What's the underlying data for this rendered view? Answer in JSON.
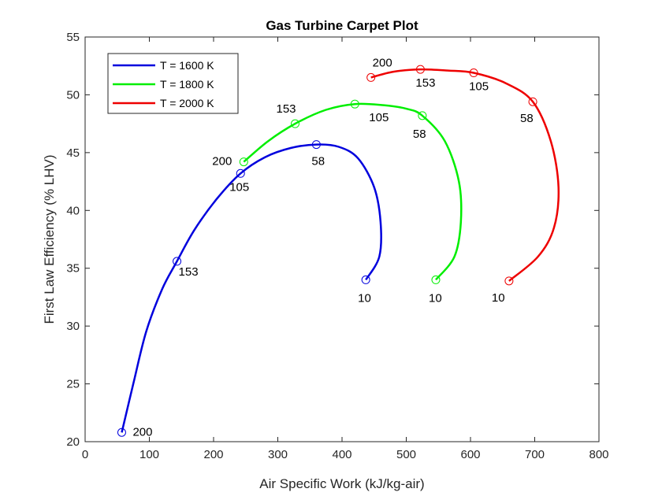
{
  "chart_data": {
    "type": "line",
    "title": "Gas Turbine Carpet Plot",
    "xlabel": "Air Specific Work (kJ/kg-air)",
    "ylabel": "First Law Efficiency (% LHV)",
    "xlim": [
      0,
      800
    ],
    "ylim": [
      20,
      55
    ],
    "xticks": [
      0,
      100,
      200,
      300,
      400,
      500,
      600,
      700,
      800
    ],
    "yticks": [
      20,
      25,
      30,
      35,
      40,
      45,
      50,
      55
    ],
    "grid": false,
    "legend_position": "top-left",
    "series": [
      {
        "name": "T = 1600 K",
        "color": "#0000dd",
        "points": [
          {
            "label": "200",
            "x": 57,
            "y": 20.8
          },
          {
            "label": "153",
            "x": 143,
            "y": 35.6
          },
          {
            "label": "105",
            "x": 242,
            "y": 43.2
          },
          {
            "label": "58",
            "x": 360,
            "y": 45.7
          },
          {
            "label": "10",
            "x": 437,
            "y": 34.0
          }
        ],
        "curve": [
          [
            57,
            20.8
          ],
          [
            75,
            25.0
          ],
          [
            95,
            29.5
          ],
          [
            120,
            33.2
          ],
          [
            143,
            35.6
          ],
          [
            170,
            38.3
          ],
          [
            205,
            41.0
          ],
          [
            242,
            43.2
          ],
          [
            280,
            44.6
          ],
          [
            320,
            45.4
          ],
          [
            360,
            45.7
          ],
          [
            395,
            45.5
          ],
          [
            425,
            44.5
          ],
          [
            450,
            42.0
          ],
          [
            460,
            39.0
          ],
          [
            458,
            36.0
          ],
          [
            437,
            34.0
          ]
        ]
      },
      {
        "name": "T = 1800 K",
        "color": "#00ee00",
        "points": [
          {
            "label": "200",
            "x": 247,
            "y": 44.2
          },
          {
            "label": "153",
            "x": 327,
            "y": 47.5
          },
          {
            "label": "105",
            "x": 420,
            "y": 49.2
          },
          {
            "label": "58",
            "x": 525,
            "y": 48.2
          },
          {
            "label": "10",
            "x": 546,
            "y": 34.0
          }
        ],
        "curve": [
          [
            247,
            44.2
          ],
          [
            285,
            46.0
          ],
          [
            327,
            47.5
          ],
          [
            375,
            48.7
          ],
          [
            420,
            49.2
          ],
          [
            465,
            49.1
          ],
          [
            500,
            48.8
          ],
          [
            525,
            48.2
          ],
          [
            560,
            46.0
          ],
          [
            582,
            42.5
          ],
          [
            585,
            39.0
          ],
          [
            575,
            36.0
          ],
          [
            546,
            34.0
          ]
        ]
      },
      {
        "name": "T = 2000 K",
        "color": "#ee0000",
        "points": [
          {
            "label": "200",
            "x": 445,
            "y": 51.5
          },
          {
            "label": "153",
            "x": 522,
            "y": 52.2
          },
          {
            "label": "105",
            "x": 605,
            "y": 51.9
          },
          {
            "label": "58",
            "x": 697,
            "y": 49.4
          },
          {
            "label": "10",
            "x": 660,
            "y": 33.9
          }
        ],
        "curve": [
          [
            445,
            51.5
          ],
          [
            480,
            52.0
          ],
          [
            522,
            52.2
          ],
          [
            565,
            52.1
          ],
          [
            605,
            51.9
          ],
          [
            655,
            51.0
          ],
          [
            697,
            49.4
          ],
          [
            725,
            46.0
          ],
          [
            737,
            42.0
          ],
          [
            730,
            38.5
          ],
          [
            705,
            36.0
          ],
          [
            660,
            33.9
          ]
        ]
      }
    ]
  }
}
